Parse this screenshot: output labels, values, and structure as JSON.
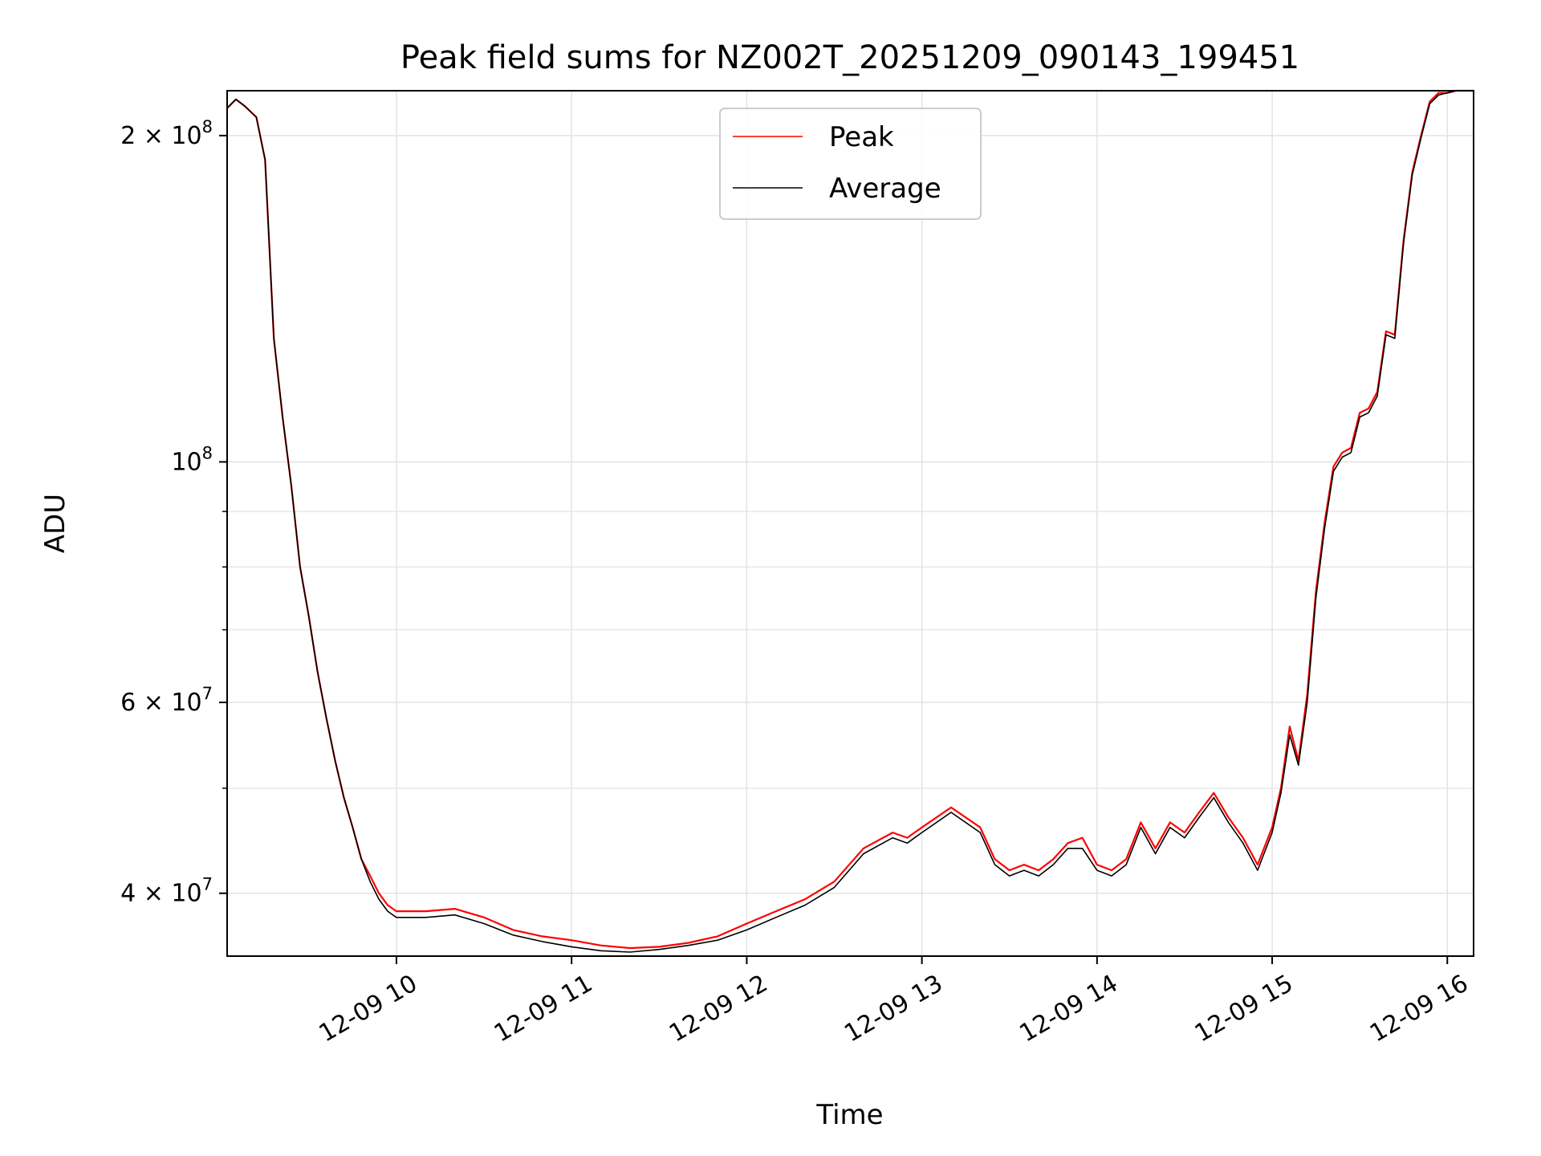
{
  "chart_data": {
    "type": "line",
    "title": "Peak field sums for NZ002T_20251209_090143_199451",
    "xlabel": "Time",
    "ylabel": "ADU",
    "y_scale": "log",
    "xlim": [
      "2025-12-09 09:02",
      "2025-12-09 16:09"
    ],
    "ylim": [
      35000000,
      220000000
    ],
    "grid": true,
    "legend": {
      "placement": "top-center"
    },
    "x_ticks": [
      "12-09 10",
      "12-09 11",
      "12-09 12",
      "12-09 13",
      "12-09 14",
      "12-09 15",
      "12-09 16"
    ],
    "x_tick_values": [
      "2025-12-09 10:00",
      "2025-12-09 11:00",
      "2025-12-09 12:00",
      "2025-12-09 13:00",
      "2025-12-09 14:00",
      "2025-12-09 15:00",
      "2025-12-09 16:00"
    ],
    "y_ticks": [
      {
        "value": 40000000,
        "mantissa": "4",
        "base": "10",
        "exponent": "7"
      },
      {
        "value": 60000000,
        "mantissa": "6",
        "base": "10",
        "exponent": "7"
      },
      {
        "value": 100000000,
        "mantissa": "",
        "base": "10",
        "exponent": "8"
      },
      {
        "value": 200000000,
        "mantissa": "2",
        "base": "10",
        "exponent": "8"
      }
    ],
    "y_minor_ticks": [
      50000000,
      70000000,
      80000000,
      90000000
    ],
    "x": [
      "09:02",
      "09:05",
      "09:08",
      "09:12",
      "09:15",
      "09:18",
      "09:21",
      "09:24",
      "09:27",
      "09:30",
      "09:33",
      "09:36",
      "09:39",
      "09:42",
      "09:45",
      "09:48",
      "09:51",
      "09:54",
      "09:57",
      "10:00",
      "10:10",
      "10:20",
      "10:30",
      "10:40",
      "10:50",
      "11:00",
      "11:10",
      "11:20",
      "11:30",
      "11:40",
      "11:50",
      "12:00",
      "12:10",
      "12:20",
      "12:30",
      "12:40",
      "12:50",
      "12:55",
      "13:00",
      "13:10",
      "13:20",
      "13:25",
      "13:30",
      "13:35",
      "13:40",
      "13:45",
      "13:50",
      "13:55",
      "14:00",
      "14:05",
      "14:10",
      "14:15",
      "14:20",
      "14:25",
      "14:30",
      "14:35",
      "14:40",
      "14:45",
      "14:50",
      "14:55",
      "15:00",
      "15:03",
      "15:06",
      "15:09",
      "15:12",
      "15:15",
      "15:18",
      "15:21",
      "15:24",
      "15:27",
      "15:30",
      "15:33",
      "15:36",
      "15:39",
      "15:42",
      "15:45",
      "15:48",
      "15:51",
      "15:54",
      "15:57",
      "16:00",
      "16:03",
      "16:06",
      "16:09"
    ],
    "series": [
      {
        "name": "Peak",
        "color": "#ff0000",
        "values": [
          212000000,
          216000000,
          213000000,
          208000000,
          190000000,
          130000000,
          110000000,
          95000000,
          80000000,
          72000000,
          64000000,
          58000000,
          53000000,
          49000000,
          46000000,
          43000000,
          41500000,
          40000000,
          39000000,
          38500000,
          38500000,
          38700000,
          38000000,
          37000000,
          36500000,
          36200000,
          35800000,
          35600000,
          35700000,
          36000000,
          36500000,
          37500000,
          38500000,
          39500000,
          41000000,
          44000000,
          45500000,
          45000000,
          46000000,
          48000000,
          46000000,
          43000000,
          42000000,
          42500000,
          42000000,
          43000000,
          44500000,
          45000000,
          42500000,
          42000000,
          43000000,
          46500000,
          44000000,
          46500000,
          45500000,
          47500000,
          49500000,
          47000000,
          45000000,
          42500000,
          46000000,
          50000000,
          57000000,
          53000000,
          61000000,
          76000000,
          88000000,
          99000000,
          102000000,
          103000000,
          111000000,
          112000000,
          116000000,
          132000000,
          131000000,
          160000000,
          185000000,
          200000000,
          215000000,
          219000000,
          219000000,
          220000000,
          220000000,
          220000000
        ]
      },
      {
        "name": "Average",
        "color": "#000000",
        "values": [
          212000000,
          216000000,
          213000000,
          208000000,
          190000000,
          130000000,
          110000000,
          95000000,
          80000000,
          72000000,
          64000000,
          58000000,
          53000000,
          49000000,
          46000000,
          43000000,
          41000000,
          39500000,
          38500000,
          38000000,
          38000000,
          38200000,
          37500000,
          36600000,
          36100000,
          35700000,
          35400000,
          35300000,
          35500000,
          35800000,
          36200000,
          37000000,
          38000000,
          39000000,
          40500000,
          43500000,
          45000000,
          44500000,
          45500000,
          47500000,
          45500000,
          42500000,
          41500000,
          42000000,
          41500000,
          42500000,
          44000000,
          44000000,
          42000000,
          41500000,
          42500000,
          46000000,
          43500000,
          46000000,
          45000000,
          47000000,
          49000000,
          46500000,
          44500000,
          42000000,
          45500000,
          49500000,
          56000000,
          52500000,
          60000000,
          75000000,
          87000000,
          98000000,
          101000000,
          102000000,
          110000000,
          111000000,
          115000000,
          131000000,
          130000000,
          159000000,
          184000000,
          199000000,
          214000000,
          218000000,
          219000000,
          220000000,
          220000000,
          220000000
        ]
      }
    ]
  }
}
